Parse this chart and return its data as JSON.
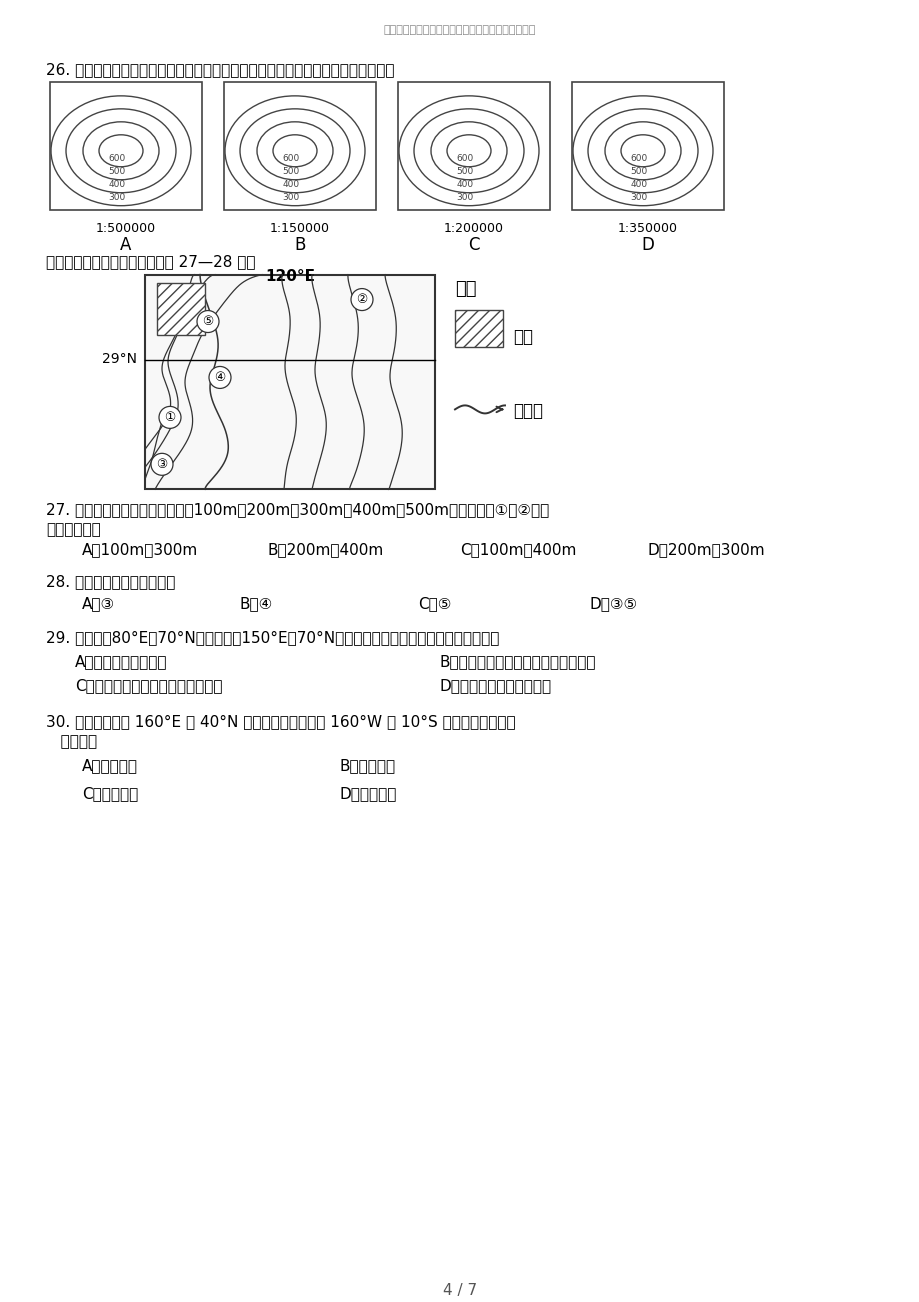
{
  "header_text": "文档供参考，可复制、编制，期待您的好评与关注！",
  "q26_text": "26. 下面四幅等高线地形图中的等高距相同，水平比例尺不同，请判断坡度最缓的是",
  "scales": [
    "1:500000",
    "1:150000",
    "1:200000",
    "1:350000"
  ],
  "labels": [
    "A",
    "B",
    "C",
    "D"
  ],
  "contour_values": [
    "600",
    "500",
    "400",
    "300"
  ],
  "q_read_text": "读某地等高线地形图，分析回答 27—28 题：",
  "map_label_120E": "120°E",
  "map_label_29N": "29°N",
  "legend_title": "图例",
  "legend_city": "城区",
  "legend_river": "河流流",
  "q27_text": "27. 图中等高线所指的高度分别为100m、200m、300m、400m、500m，则等高线①和②的海",
  "q27_text2": "拔高度分别为",
  "q27_options": [
    "A．100m、300m",
    "B．200m、400m",
    "C．100m、400m",
    "D．200m、300m"
  ],
  "q28_text": "28. 图中河流中画法正确的是",
  "q28_options": [
    "A．③",
    "B．④",
    "C．⑤",
    "D．③⑤"
  ],
  "q29_text": "29. 从甲地（80°E，70°N）到乙地（150°E，70°N），若不考虑地形因素，最近的走法是：",
  "q29_A": "A、一直向正东方向走",
  "q29_B": "B、先向东南，再向东，最后向东北走",
  "q29_C": "C、先向东北，再向东，最后向东南",
  "q29_D": "D、先向东南，再向东北走",
  "q30_text": "30. 已知甲地位于 160°E 和 40°N 的交点上，乙地位于 160°W 和 10°S 的交点上。甲地位",
  "q30_text2": "   于乙地的",
  "q30_A": "A．东北方向",
  "q30_B": "B．东南方向",
  "q30_C": "C．西南方向",
  "q30_D": "D．西北方向",
  "page_number": "4 / 7",
  "bg_color": "#ffffff",
  "text_color": "#000000",
  "gray_color": "#888888"
}
